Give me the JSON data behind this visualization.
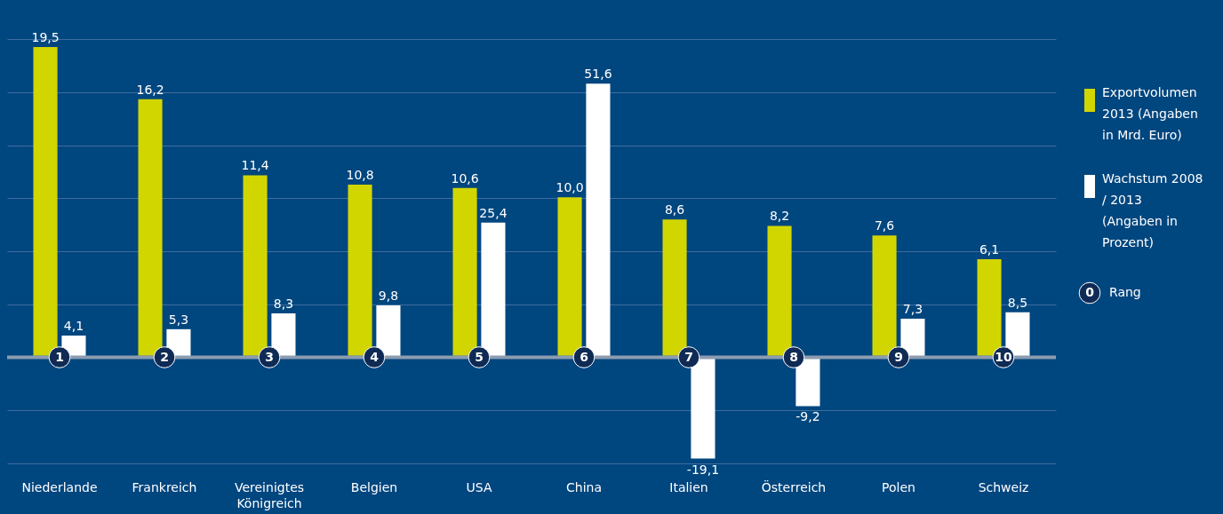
{
  "chart_data": {
    "type": "bar",
    "categories": [
      "Niederlande",
      "Frankreich",
      "Vereinigtes Königreich",
      "Belgien",
      "USA",
      "China",
      "Italien",
      "Österreich",
      "Polen",
      "Schweiz"
    ],
    "series": [
      {
        "name": "Exportvolumen 2013 (Angaben in Mrd. Euro)",
        "color": "#d2d600",
        "values": [
          19.5,
          16.2,
          11.4,
          10.8,
          10.6,
          10.0,
          8.6,
          8.2,
          7.6,
          6.1
        ],
        "value_labels": [
          "19,5",
          "16,2",
          "11,4",
          "10,8",
          "10,6",
          "10,0",
          "8,6",
          "8,2",
          "7,6",
          "6,1"
        ]
      },
      {
        "name": "Wachstum 2008 / 2013 (Angaben in Prozent)",
        "color": "#ffffff",
        "axis": "y2",
        "values": [
          4.1,
          5.3,
          8.3,
          9.8,
          25.4,
          51.6,
          -19.1,
          -9.2,
          7.3,
          8.5
        ],
        "value_labels": [
          "4,1",
          "5,3",
          "8,3",
          "9,8",
          "25,4",
          "51,6",
          "-19,1",
          "-9,2",
          "7,3",
          "8,5"
        ]
      }
    ],
    "ylim": [
      -6.8,
      20
    ],
    "y2lim": [
      -20,
      60
    ],
    "y2ticks": [
      {
        "value": -20,
        "label": null
      },
      {
        "value": -10,
        "label": null
      },
      {
        "value": 0,
        "label": null
      },
      {
        "value": 10,
        "label": null
      },
      {
        "value": 20,
        "label": null
      },
      {
        "value": 30,
        "label": null
      },
      {
        "value": 40,
        "label": null
      },
      {
        "value": 50,
        "label": null
      },
      {
        "value": 60,
        "label": null
      }
    ],
    "grid": "y",
    "tick_labels": "x",
    "legend": "right",
    "ref_lines": [
      {
        "axis": "y2",
        "value": 0,
        "color": "#8c9cb0"
      }
    ],
    "annotations": [
      {
        "text": "1",
        "x": "Niederlande",
        "y": 0
      },
      {
        "text": "2",
        "x": "Frankreich",
        "y": 0
      },
      {
        "text": "3",
        "x": "Vereinigtes Königreich",
        "y": 0
      },
      {
        "text": "4",
        "x": "Belgien",
        "y": 0
      },
      {
        "text": "5",
        "x": "USA",
        "y": 0
      },
      {
        "text": "6",
        "x": "China",
        "y": 0
      },
      {
        "text": "7",
        "x": "Italien",
        "y": 0
      },
      {
        "text": "8",
        "x": "Österreich",
        "y": 0
      },
      {
        "text": "9",
        "x": "Polen",
        "y": 0
      },
      {
        "text": "10",
        "x": "Schweiz",
        "y": 0
      },
      "0",
      "Rang"
    ]
  }
}
